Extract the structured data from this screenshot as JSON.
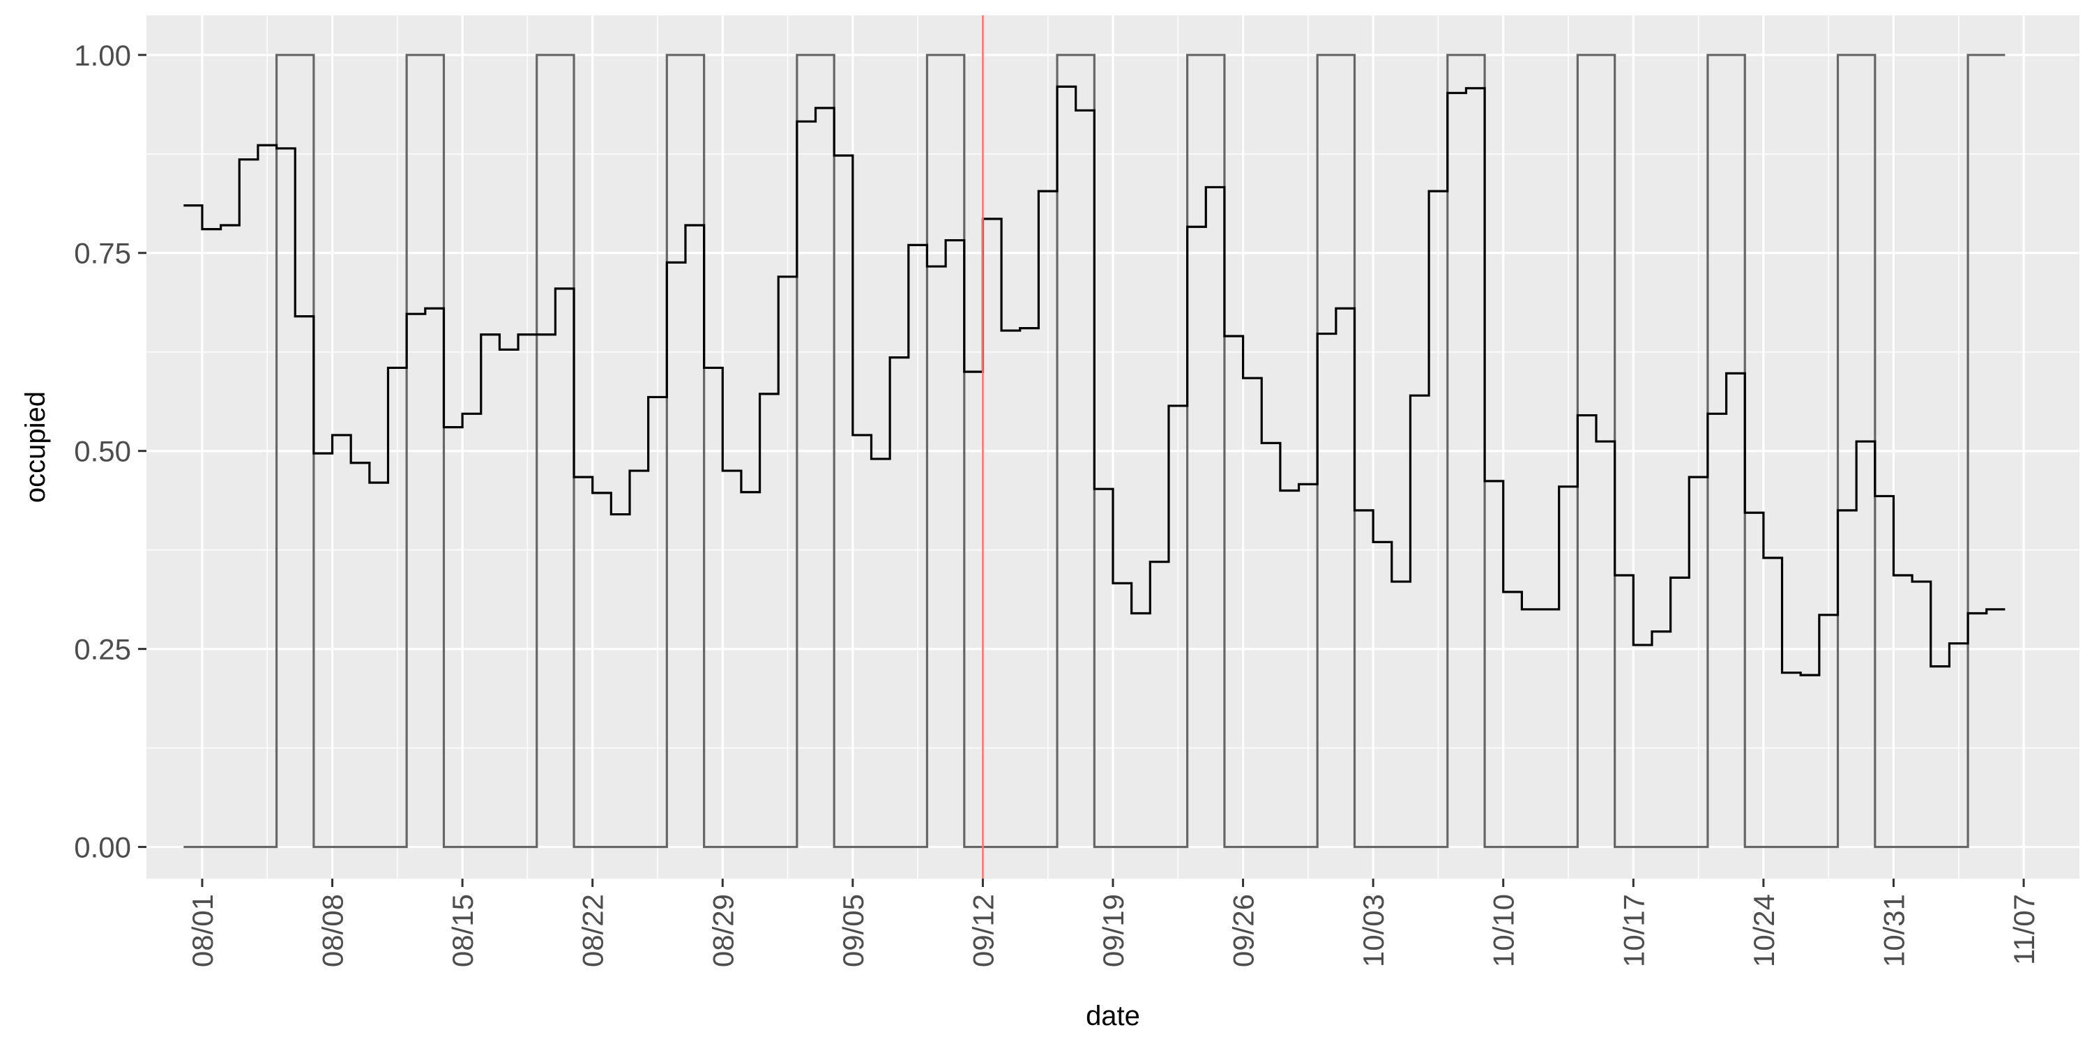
{
  "chart_data": {
    "type": "line",
    "title": "",
    "xlabel": "date",
    "ylabel": "occupied",
    "xlim": [
      "07-29",
      "11-10"
    ],
    "ylim": [
      -0.04,
      1.05
    ],
    "grid": true,
    "legend": "none",
    "x_ticks": [
      "08/01",
      "08/08",
      "08/15",
      "08/22",
      "08/29",
      "09/05",
      "09/12",
      "09/19",
      "09/26",
      "10/03",
      "10/10",
      "10/17",
      "10/24",
      "10/31",
      "11/07"
    ],
    "y_ticks": [
      "0.00",
      "0.25",
      "0.50",
      "0.75",
      "1.00"
    ],
    "reference_line": {
      "x": "09-12",
      "color": "#f8766d"
    },
    "series": [
      {
        "style": "step",
        "color": "#000000",
        "start": "07-31",
        "values": [
          0.81,
          0.78,
          0.785,
          0.868,
          0.886,
          0.882,
          0.67,
          0.497,
          0.52,
          0.485,
          0.46,
          0.605,
          0.673,
          0.68,
          0.53,
          0.547,
          0.647,
          0.628,
          0.647,
          0.647,
          0.705,
          0.467,
          0.447,
          0.42,
          0.475,
          0.568,
          0.738,
          0.785,
          0.605,
          0.475,
          0.448,
          0.572,
          0.72,
          0.916,
          0.933,
          0.873,
          0.52,
          0.49,
          0.618,
          0.76,
          0.733,
          0.766,
          0.6,
          0.793,
          0.652,
          0.655,
          0.828,
          0.96,
          0.93,
          0.452,
          0.333,
          0.295,
          0.36,
          0.557,
          0.783,
          0.833,
          0.645,
          0.592,
          0.51,
          0.45,
          0.458,
          0.648,
          0.68,
          0.425,
          0.385,
          0.335,
          0.57,
          0.828,
          0.952,
          0.958,
          0.462,
          0.322,
          0.3,
          0.3,
          0.455,
          0.545,
          0.512,
          0.343,
          0.255,
          0.272,
          0.34,
          0.467,
          0.547,
          0.598,
          0.422,
          0.365,
          0.22,
          0.217,
          0.293,
          0.425,
          0.512,
          0.443,
          0.343,
          0.335,
          0.228,
          0.257,
          0.295,
          0.3
        ]
      },
      {
        "style": "step",
        "color": "#666666",
        "start": "07-31",
        "values": [
          0,
          0,
          0,
          0,
          0,
          1,
          1,
          0,
          0,
          0,
          0,
          0,
          1,
          1,
          0,
          0,
          0,
          0,
          0,
          1,
          1,
          0,
          0,
          0,
          0,
          0,
          1,
          1,
          0,
          0,
          0,
          0,
          0,
          1,
          1,
          0,
          0,
          0,
          0,
          0,
          1,
          1,
          0,
          0,
          0,
          0,
          0,
          1,
          1,
          0,
          0,
          0,
          0,
          0,
          1,
          1,
          0,
          0,
          0,
          0,
          0,
          1,
          1,
          0,
          0,
          0,
          0,
          0,
          1,
          1,
          0,
          0,
          0,
          0,
          0,
          1,
          1,
          0,
          0,
          0,
          0,
          0,
          1,
          1,
          0,
          0,
          0,
          0,
          0,
          1,
          1,
          0,
          0,
          0,
          0,
          0,
          1,
          1
        ]
      }
    ]
  }
}
